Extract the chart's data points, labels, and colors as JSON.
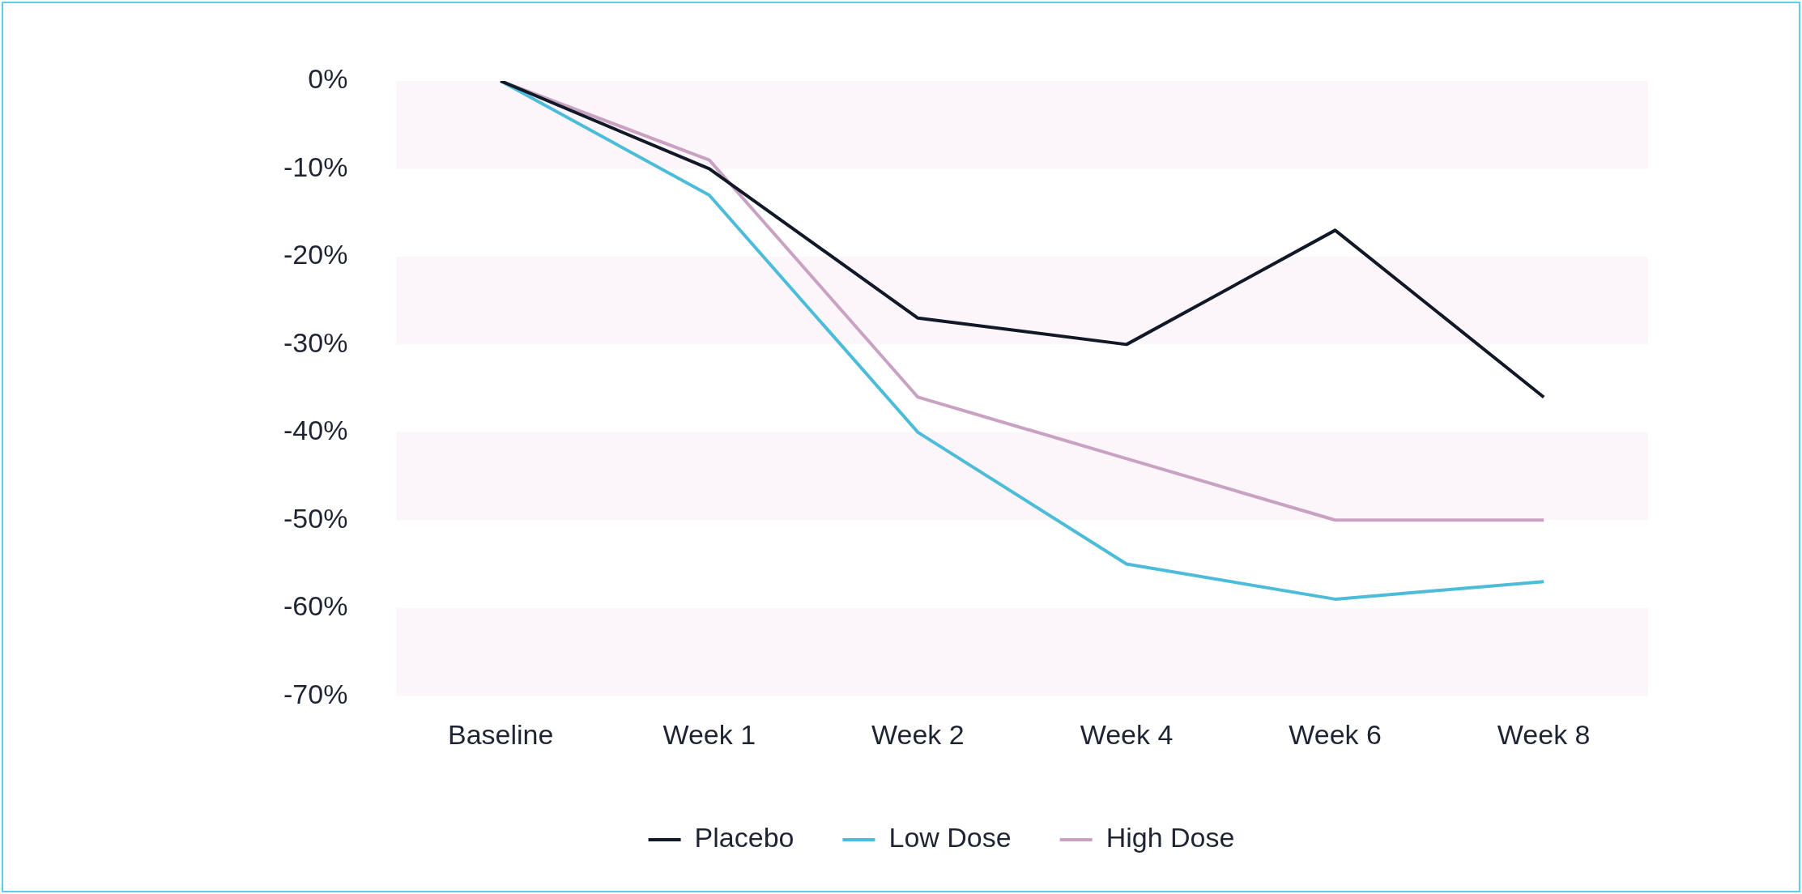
{
  "chart_data": {
    "type": "line",
    "categories": [
      "Baseline",
      "Week 1",
      "Week 2",
      "Week 4",
      "Week 6",
      "Week 8"
    ],
    "series": [
      {
        "name": "Placebo",
        "color": "#111827",
        "values": [
          0,
          -10,
          -27,
          -30,
          -17,
          -36
        ]
      },
      {
        "name": "Low Dose",
        "color": "#4cbcd8",
        "values": [
          0,
          -13,
          -40,
          -55,
          -59,
          -57
        ]
      },
      {
        "name": "High Dose",
        "color": "#c9a1c2",
        "values": [
          0,
          -9,
          -36,
          -43,
          -50,
          -50
        ]
      }
    ],
    "ylim": [
      -70,
      0
    ],
    "yticks": [
      {
        "value": 0,
        "label": "0%"
      },
      {
        "value": -10,
        "label": "-10%"
      },
      {
        "value": -20,
        "label": "-20%"
      },
      {
        "value": -30,
        "label": "-30%"
      },
      {
        "value": -40,
        "label": "-40%"
      },
      {
        "value": -50,
        "label": "-50%"
      },
      {
        "value": -60,
        "label": "-60%"
      },
      {
        "value": -70,
        "label": "-70%"
      }
    ],
    "bands": [
      {
        "axis": "y",
        "from": 0,
        "to": -10,
        "color": "#fcf5fa"
      },
      {
        "axis": "y",
        "from": -20,
        "to": -30,
        "color": "#fcf5fa"
      },
      {
        "axis": "y",
        "from": -40,
        "to": -50,
        "color": "#fcf5fa"
      },
      {
        "axis": "y",
        "from": -60,
        "to": -70,
        "color": "#fcf5fa"
      }
    ],
    "grid": false,
    "legend": "bottom",
    "marker": "none",
    "line_style": "solid"
  }
}
